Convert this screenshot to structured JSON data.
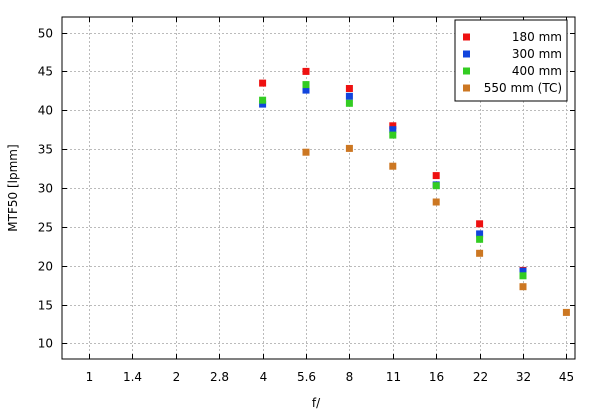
{
  "chart_data": {
    "type": "scatter",
    "title": "",
    "xlabel": "f/",
    "ylabel": "MTF50 [lpmm]",
    "x_categories": [
      "1",
      "1.4",
      "2",
      "2.8",
      "4",
      "5.6",
      "8",
      "11",
      "16",
      "22",
      "32",
      "45"
    ],
    "ylim": [
      8,
      52
    ],
    "yticks": [
      10,
      15,
      20,
      25,
      30,
      35,
      40,
      45,
      50
    ],
    "grid": true,
    "legend_position": "top-right",
    "series": [
      {
        "name": "180 mm",
        "color": "#ee1111",
        "points": [
          {
            "x": "4",
            "y": 43.5
          },
          {
            "x": "5.6",
            "y": 45.0
          },
          {
            "x": "8",
            "y": 42.8
          },
          {
            "x": "11",
            "y": 38.0
          },
          {
            "x": "16",
            "y": 31.6
          },
          {
            "x": "22",
            "y": 25.4
          },
          {
            "x": "32",
            "y": 19.4
          }
        ]
      },
      {
        "name": "300 mm",
        "color": "#1144dd",
        "points": [
          {
            "x": "4",
            "y": 40.8
          },
          {
            "x": "5.6",
            "y": 42.6
          },
          {
            "x": "8",
            "y": 41.8
          },
          {
            "x": "11",
            "y": 37.5
          },
          {
            "x": "16",
            "y": 30.4
          },
          {
            "x": "22",
            "y": 24.1
          },
          {
            "x": "32",
            "y": 19.3
          }
        ]
      },
      {
        "name": "400 mm",
        "color": "#33cc22",
        "points": [
          {
            "x": "4",
            "y": 41.3
          },
          {
            "x": "5.6",
            "y": 43.3
          },
          {
            "x": "8",
            "y": 40.9
          },
          {
            "x": "11",
            "y": 36.8
          },
          {
            "x": "16",
            "y": 30.3
          },
          {
            "x": "22",
            "y": 23.4
          },
          {
            "x": "32",
            "y": 18.7
          }
        ]
      },
      {
        "name": "550 mm (TC)",
        "color": "#cc7722",
        "points": [
          {
            "x": "5.6",
            "y": 34.6
          },
          {
            "x": "8",
            "y": 35.1
          },
          {
            "x": "11",
            "y": 32.8
          },
          {
            "x": "16",
            "y": 28.2
          },
          {
            "x": "22",
            "y": 21.6
          },
          {
            "x": "32",
            "y": 17.3
          },
          {
            "x": "45",
            "y": 14.0
          }
        ]
      }
    ]
  }
}
